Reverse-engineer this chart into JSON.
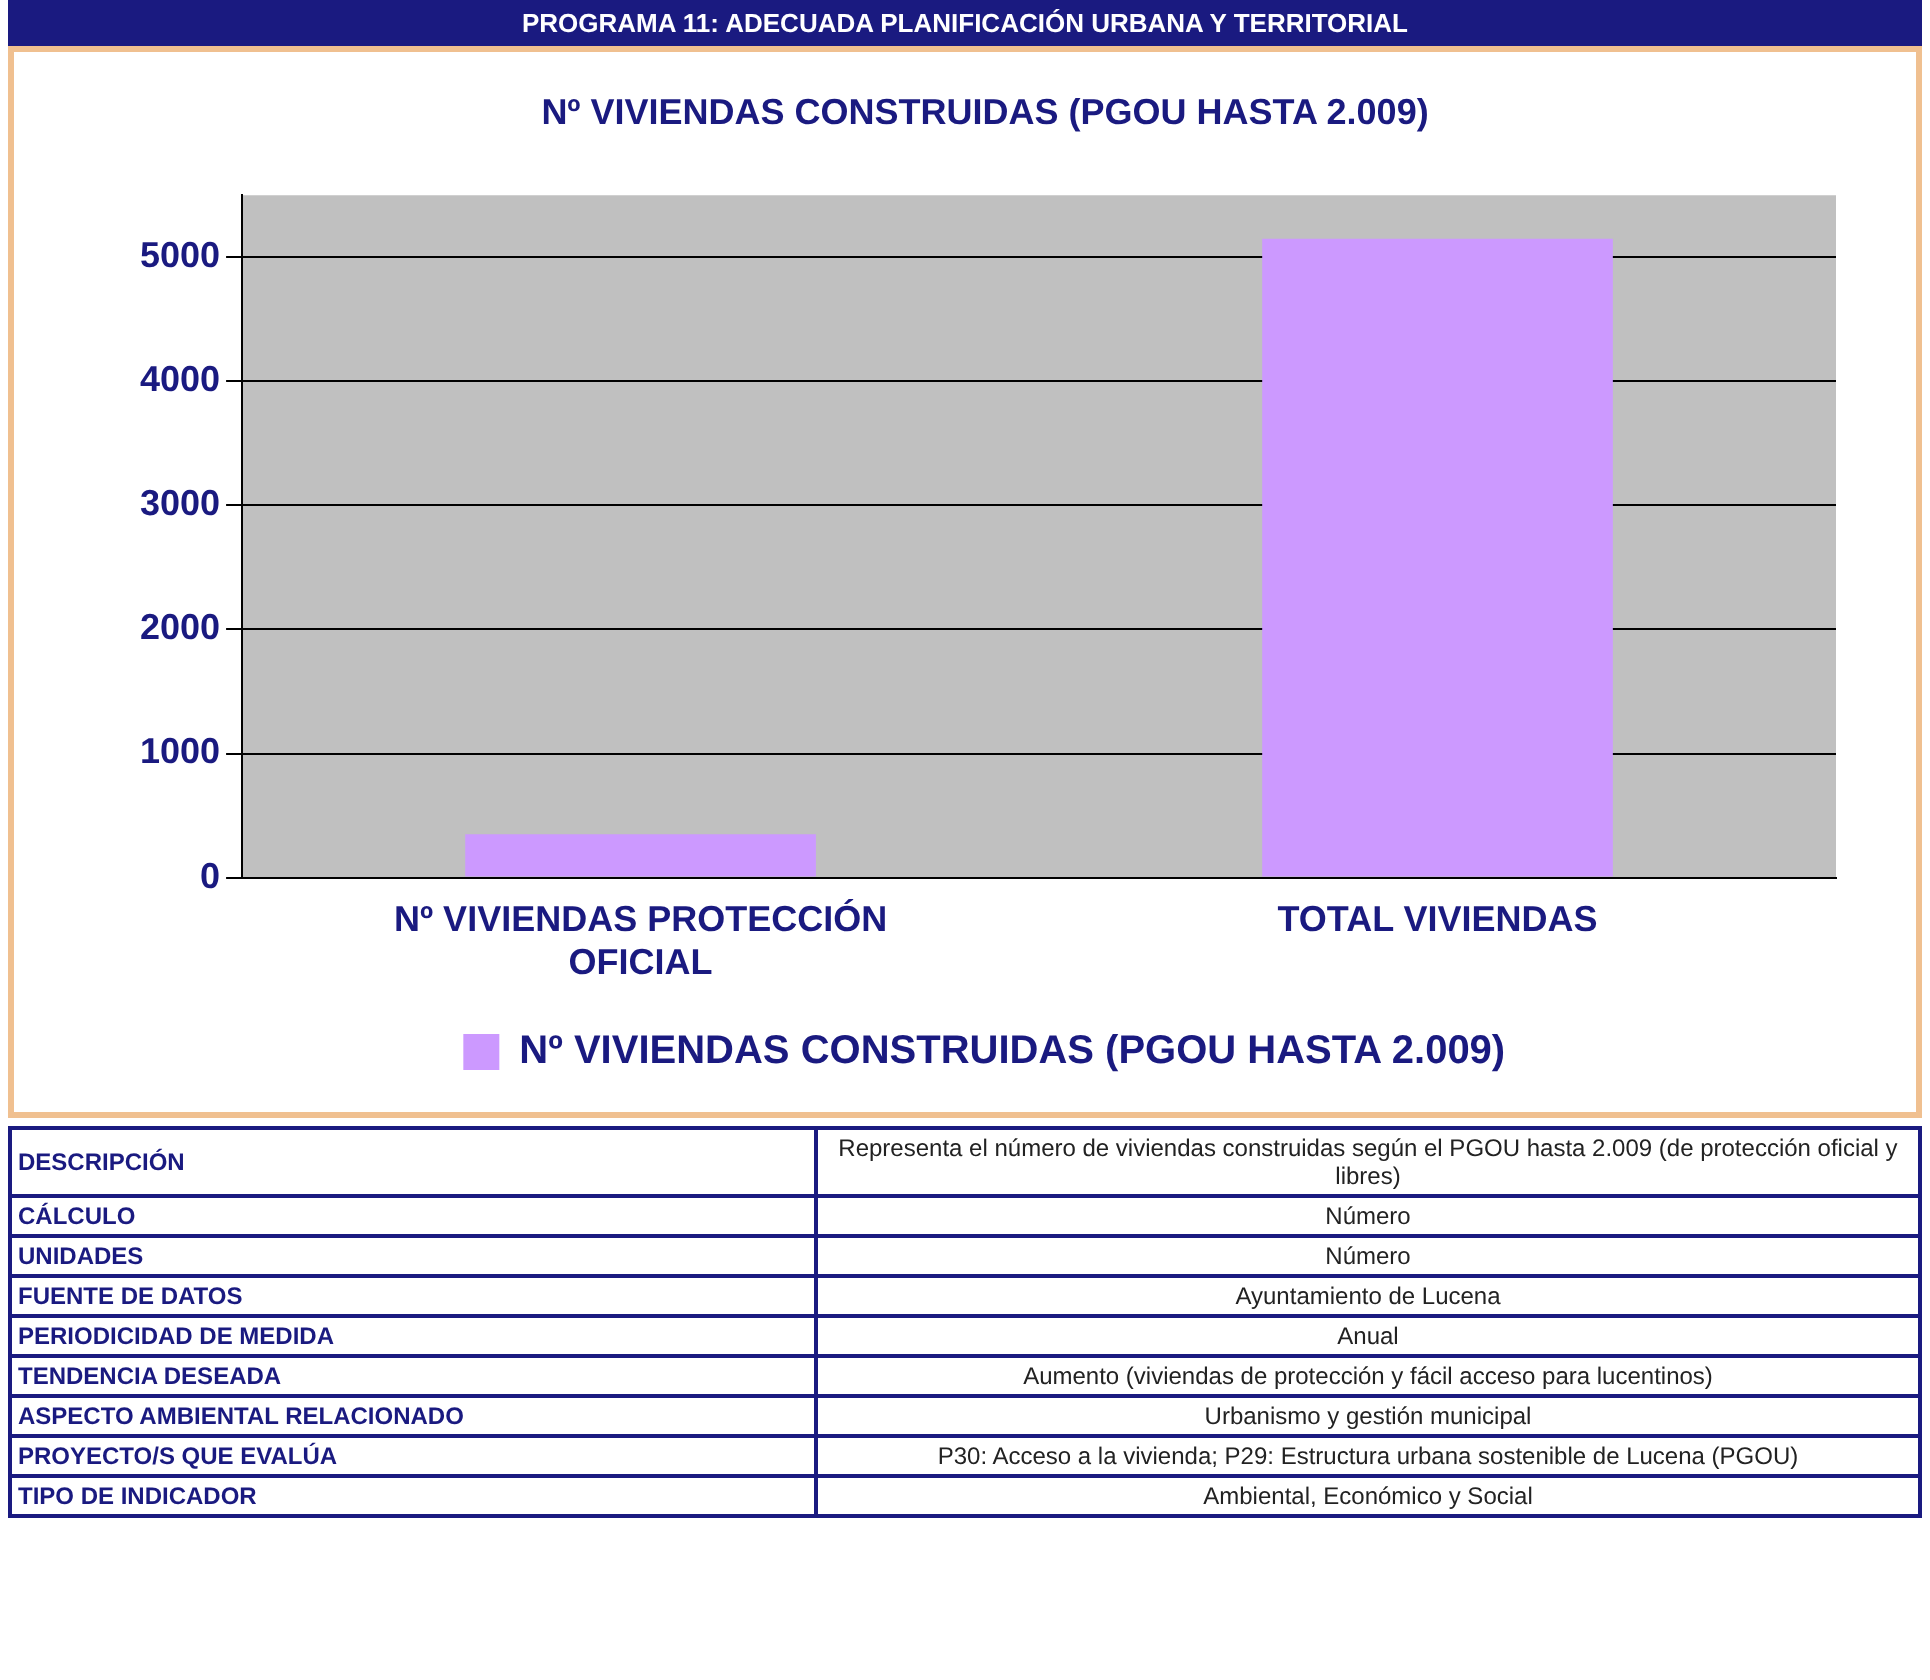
{
  "chart_data": {
    "type": "bar",
    "title": "PROGRAMA 11: ADECUADA PLANIFICACIÓN URBANA Y TERRITORIAL",
    "subtitle": "Nº VIVIENDAS CONSTRUIDAS (PGOU HASTA 2.009)",
    "categories": [
      "Nº VIVIENDAS PROTECCIÓN OFICIAL",
      "TOTAL VIVIENDAS"
    ],
    "series": [
      {
        "name": "Nº VIVIENDAS CONSTRUIDAS (PGOU HASTA 2.009)",
        "color": "#cc99ff",
        "values": [
          350,
          5150
        ]
      }
    ],
    "ylim": [
      0,
      5500
    ],
    "yticks": [
      0,
      1000,
      2000,
      3000,
      4000,
      5000
    ],
    "grid": "y",
    "legend": "bottom",
    "annotations": [
      "DESCRIPCIÓN",
      "Representa el número de viviendas construidas según el PGOU hasta 2.009 (de protección oficial y libres)",
      "CÁLCULO",
      "Número",
      "UNIDADES",
      "Número",
      "FUENTE DE DATOS",
      "Ayuntamiento de Lucena",
      "PERIODICIDAD DE MEDIDA",
      "Anual",
      "TENDENCIA DESEADA",
      "Aumento (viviendas de protección y fácil acceso para lucentinos)",
      "ASPECTO AMBIENTAL RELACIONADO",
      "Urbanismo y gestión municipal",
      "PROYECTO/S QUE EVALÚA",
      "P30: Acceso a la vivienda; P29: Estructura urbana sostenible de Lucena (PGOU)",
      "TIPO DE INDICADOR",
      "Ambiental, Económico y Social"
    ]
  }
}
